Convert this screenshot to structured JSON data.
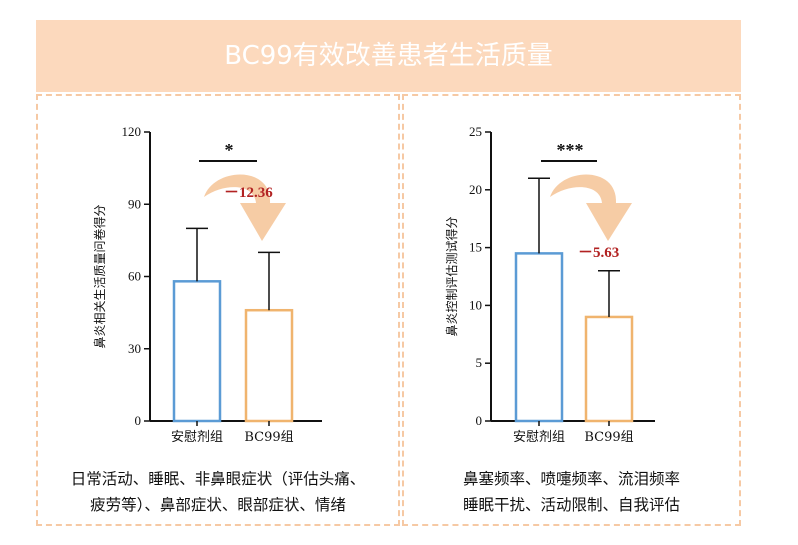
{
  "header": {
    "title": "BC99有效改善患者生活质量"
  },
  "chart_data": [
    {
      "type": "bar",
      "categories": [
        "安慰剂组",
        "BC99组"
      ],
      "values": [
        58,
        46
      ],
      "error_upper": [
        80,
        70
      ],
      "ylabel": "鼻炎相关生活质量问卷得分",
      "ylim": [
        0,
        120
      ],
      "yticks": [
        "0",
        "30",
        "60",
        "90",
        "120"
      ],
      "significance": "*",
      "delta_label": "－12.36",
      "colors": [
        "#5b9bd5",
        "#f0b46e"
      ],
      "caption": [
        "日常活动、睡眠、非鼻眼症状（评估头痛、",
        "疲劳等）、鼻部症状、眼部症状、情绪"
      ]
    },
    {
      "type": "bar",
      "categories": [
        "安慰剂组",
        "BC99组"
      ],
      "values": [
        14.5,
        9
      ],
      "error_upper": [
        21,
        13
      ],
      "ylabel": "鼻炎控制评估测试得分",
      "ylim": [
        0,
        25
      ],
      "yticks": [
        "0",
        "5",
        "10",
        "15",
        "20",
        "25"
      ],
      "significance": "***",
      "delta_label": "－5.63",
      "colors": [
        "#5b9bd5",
        "#f0b46e"
      ],
      "caption": [
        "鼻塞频率、喷嚏频率、流泪频率",
        "睡眠干扰、活动限制、自我评估"
      ]
    }
  ]
}
